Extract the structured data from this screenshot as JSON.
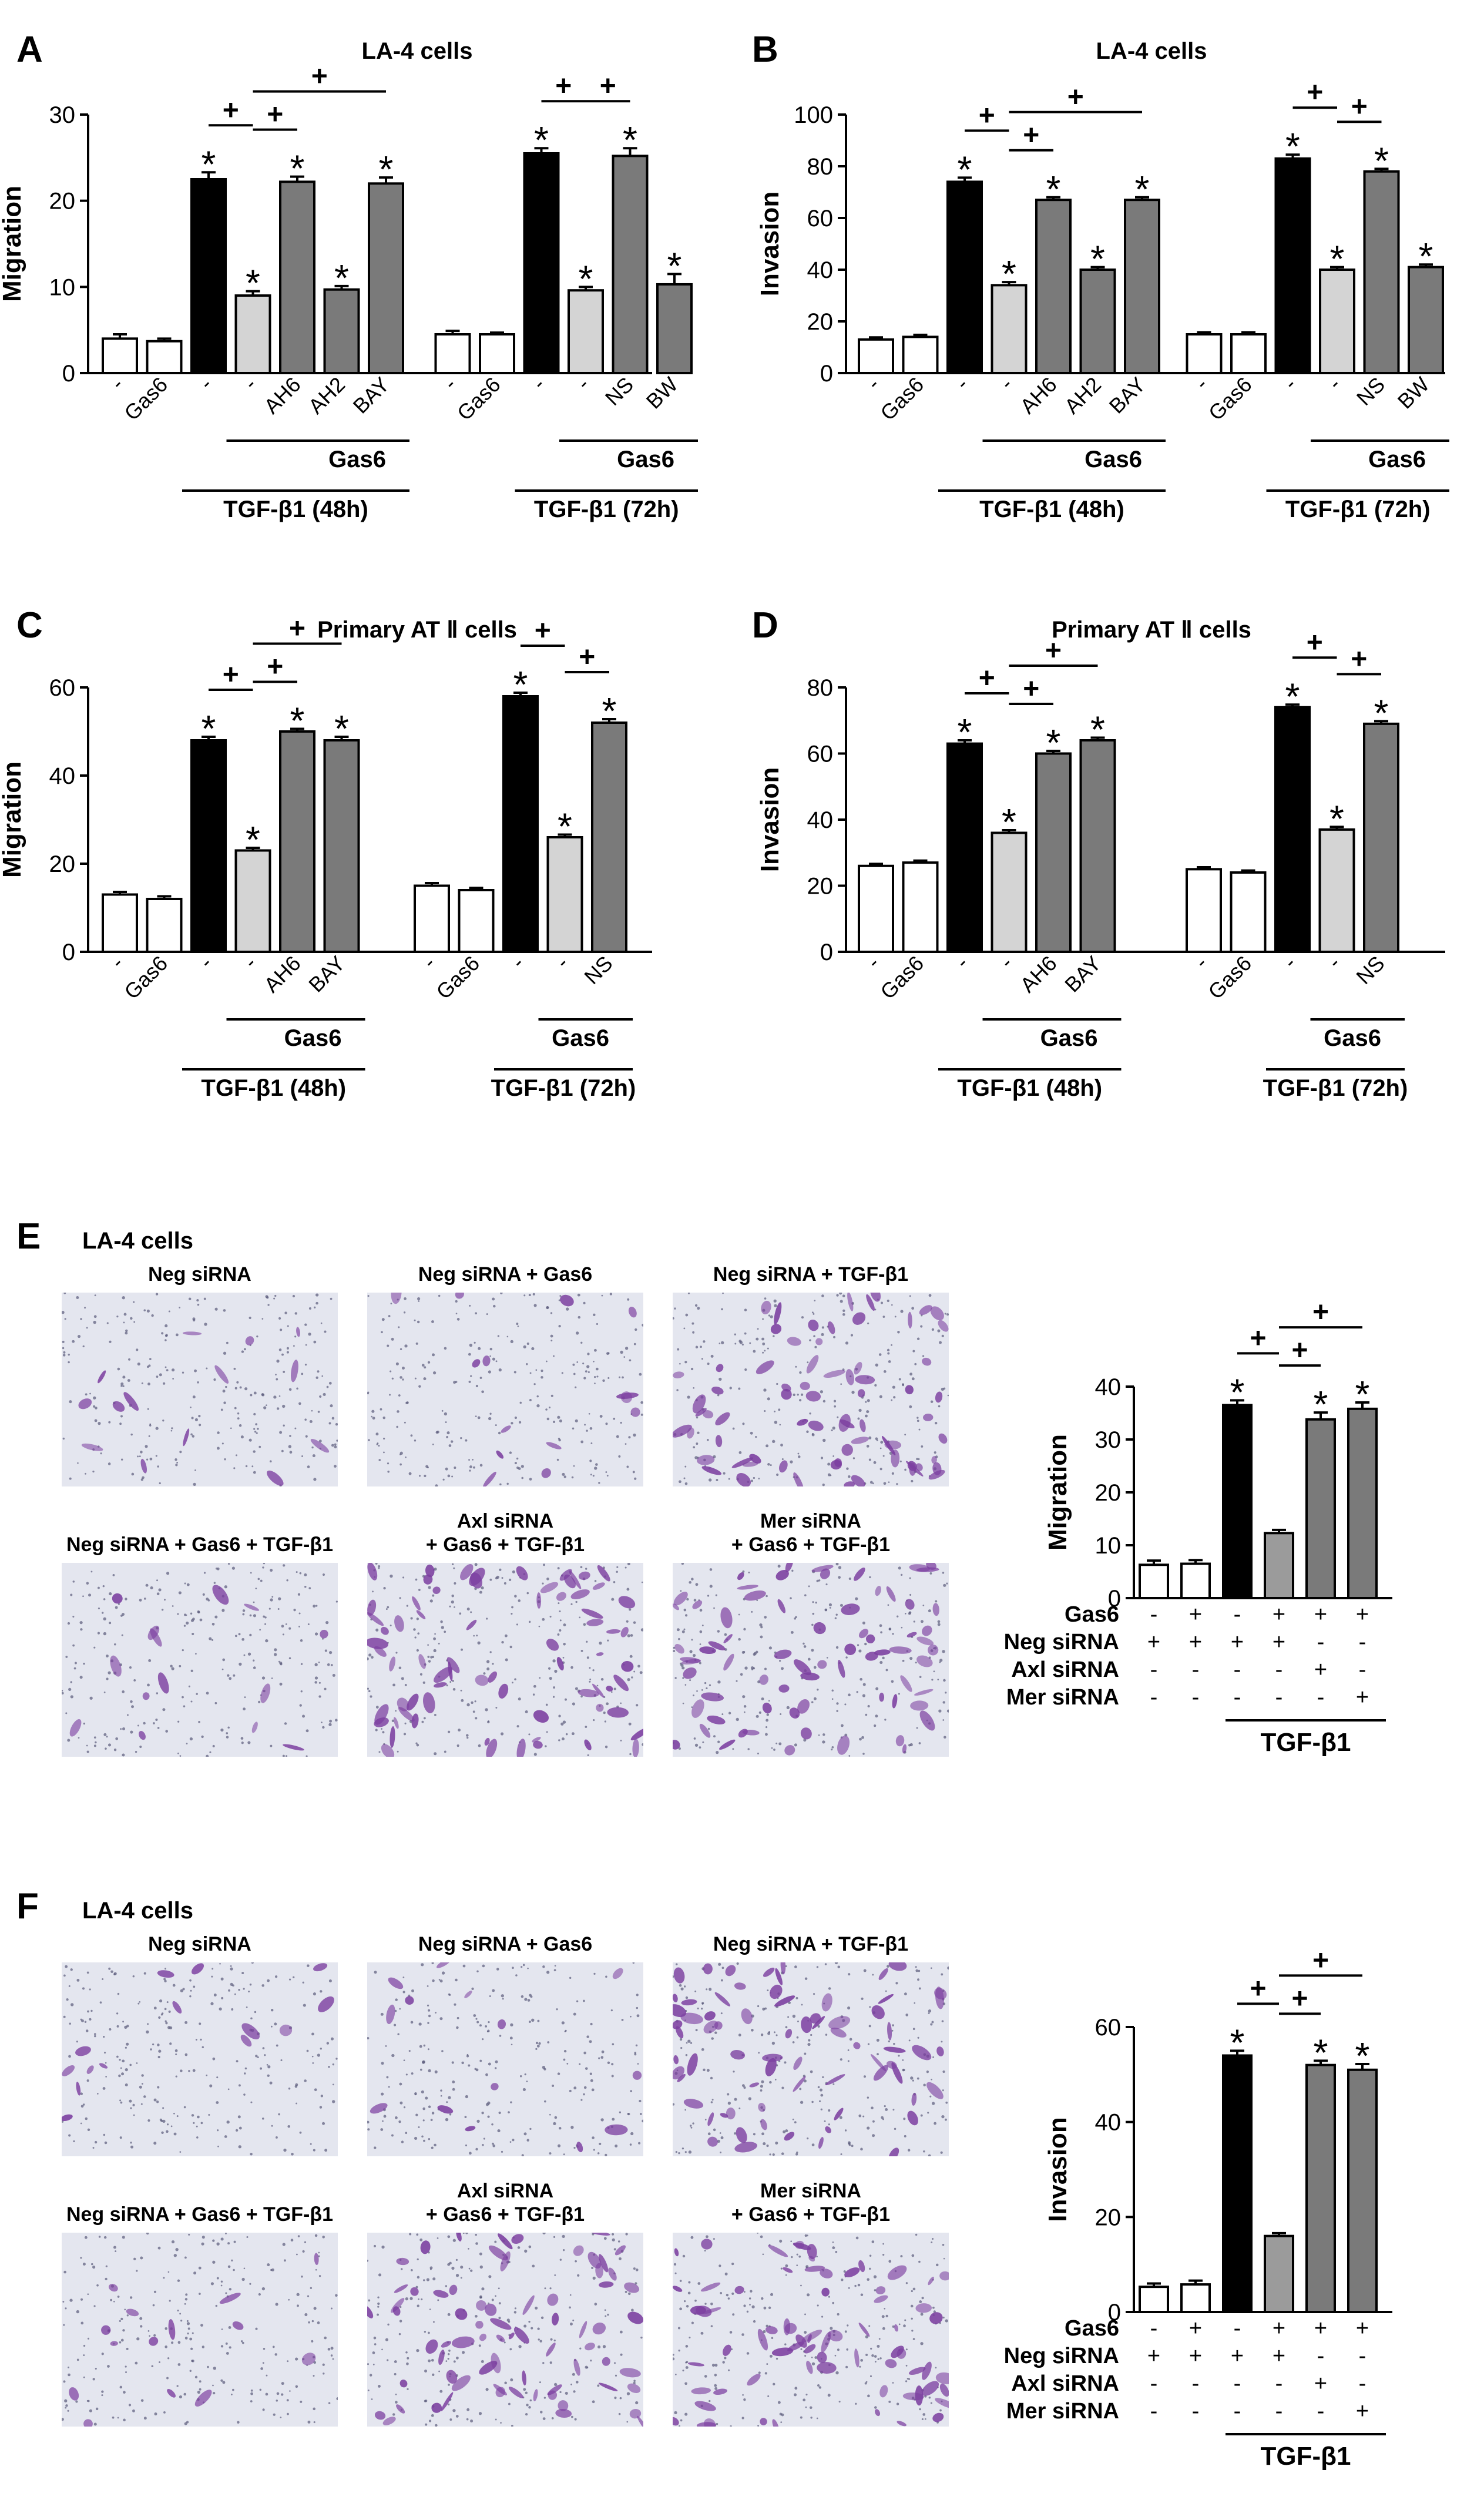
{
  "figure": {
    "panels": [
      {
        "letter": "A",
        "title": "LA-4 cells"
      },
      {
        "letter": "B",
        "title": "LA-4 cells"
      },
      {
        "letter": "C",
        "title": "Primary AT Ⅱ cells"
      },
      {
        "letter": "D",
        "title": "Primary AT Ⅱ cells"
      },
      {
        "letter": "E",
        "title": "LA-4 cells"
      },
      {
        "letter": "F",
        "title": "LA-4 cells"
      }
    ],
    "micrographs": {
      "E": [
        {
          "label_lines": [
            "Neg siRNA"
          ],
          "density": "low"
        },
        {
          "label_lines": [
            "Neg siRNA + Gas6"
          ],
          "density": "low"
        },
        {
          "label_lines": [
            "Neg siRNA + TGF-β1"
          ],
          "density": "high"
        },
        {
          "label_lines": [
            "Neg siRNA + Gas6 + TGF-β1"
          ],
          "density": "low"
        },
        {
          "label_lines": [
            "Axl siRNA",
            "+ Gas6 + TGF-β1"
          ],
          "density": "high"
        },
        {
          "label_lines": [
            "Mer siRNA",
            "+ Gas6 + TGF-β1"
          ],
          "density": "high"
        }
      ],
      "F": [
        {
          "label_lines": [
            "Neg siRNA"
          ],
          "density": "low"
        },
        {
          "label_lines": [
            "Neg siRNA + Gas6"
          ],
          "density": "low"
        },
        {
          "label_lines": [
            "Neg siRNA + TGF-β1"
          ],
          "density": "high"
        },
        {
          "label_lines": [
            "Neg siRNA + Gas6 + TGF-β1"
          ],
          "density": "low"
        },
        {
          "label_lines": [
            "Axl siRNA",
            "+ Gas6 + TGF-β1"
          ],
          "density": "high"
        },
        {
          "label_lines": [
            "Mer siRNA",
            "+ Gas6 + TGF-β1"
          ],
          "density": "high"
        }
      ]
    },
    "colors": {
      "black": "#000000",
      "white": "#ffffff",
      "light_gray": "#d4d4d4",
      "dark_gray": "#7a7a7a",
      "mid_gray": "#9b9b9b",
      "micro_bg": "#e4e6ef",
      "cell_purple": "#7c3fa0",
      "pore_dot": "#5a5a7a"
    }
  },
  "chart_data": [
    {
      "panel": "A",
      "type": "bar",
      "title": "LA-4 cells",
      "xlabel": "",
      "ylabel": "Migration",
      "ylim": [
        0,
        30
      ],
      "yticks": [
        0,
        10,
        20,
        30
      ],
      "grid": false,
      "categories": [
        "-",
        "Gas6",
        "-",
        "-",
        "AH6",
        "AH2",
        "BAY",
        "-",
        "Gas6",
        "-",
        "-",
        "NS",
        "BW"
      ],
      "values": [
        4.0,
        3.7,
        22.5,
        9.0,
        22.2,
        9.7,
        22.0,
        4.5,
        4.5,
        25.5,
        9.6,
        25.2,
        10.3
      ],
      "errors": [
        0.5,
        0.3,
        0.8,
        0.5,
        0.6,
        0.4,
        0.7,
        0.4,
        0.2,
        0.6,
        0.4,
        0.9,
        1.2
      ],
      "fills": [
        "white",
        "white",
        "black",
        "light",
        "dark",
        "dark",
        "dark",
        "white",
        "white",
        "black",
        "light",
        "dark",
        "dark"
      ],
      "significant": [
        false,
        false,
        true,
        true,
        true,
        true,
        true,
        false,
        false,
        true,
        true,
        true,
        true
      ],
      "significance_mark": "*",
      "comparisons": [
        {
          "from": 2,
          "to": 3,
          "label": "+"
        },
        {
          "from": 3,
          "to": 4,
          "label": "+"
        },
        {
          "from": 3,
          "to": 6,
          "label": "+"
        },
        {
          "from": 9,
          "to": 10,
          "label": "+"
        },
        {
          "from": 10,
          "to": 11,
          "label": "+"
        }
      ],
      "groupings": [
        {
          "label": "Gas6",
          "from": 3,
          "to": 6
        },
        {
          "label": "TGF-β1 (48h)",
          "from": 2,
          "to": 6
        },
        {
          "label": "Gas6",
          "from": 10,
          "to": 12
        },
        {
          "label": "TGF-β1 (72h)",
          "from": 9,
          "to": 12
        }
      ]
    },
    {
      "panel": "B",
      "type": "bar",
      "title": "LA-4 cells",
      "xlabel": "",
      "ylabel": "Invasion",
      "ylim": [
        0,
        100
      ],
      "yticks": [
        0,
        20,
        40,
        60,
        80,
        100
      ],
      "grid": false,
      "categories": [
        "-",
        "Gas6",
        "-",
        "-",
        "AH6",
        "AH2",
        "BAY",
        "-",
        "Gas6",
        "-",
        "-",
        "NS",
        "BW"
      ],
      "values": [
        13,
        14,
        74,
        34,
        67,
        40,
        67,
        15,
        15,
        83,
        40,
        78,
        41
      ],
      "errors": [
        0.8,
        0.8,
        1.6,
        1.2,
        1.0,
        1.0,
        1.0,
        0.8,
        0.8,
        1.5,
        1.0,
        1.0,
        1.0
      ],
      "fills": [
        "white",
        "white",
        "black",
        "light",
        "dark",
        "dark",
        "dark",
        "white",
        "white",
        "black",
        "light",
        "dark",
        "dark"
      ],
      "significant": [
        false,
        false,
        true,
        true,
        true,
        true,
        true,
        false,
        false,
        true,
        true,
        true,
        true
      ],
      "significance_mark": "*",
      "comparisons": [
        {
          "from": 2,
          "to": 3,
          "label": "+"
        },
        {
          "from": 3,
          "to": 4,
          "label": "+"
        },
        {
          "from": 3,
          "to": 6,
          "label": "+"
        },
        {
          "from": 9,
          "to": 10,
          "label": "+"
        },
        {
          "from": 10,
          "to": 11,
          "label": "+"
        }
      ],
      "groupings": [
        {
          "label": "Gas6",
          "from": 3,
          "to": 6
        },
        {
          "label": "TGF-β1 (48h)",
          "from": 2,
          "to": 6
        },
        {
          "label": "Gas6",
          "from": 10,
          "to": 12
        },
        {
          "label": "TGF-β1 (72h)",
          "from": 9,
          "to": 12
        }
      ]
    },
    {
      "panel": "C",
      "type": "bar",
      "title": "Primary AT Ⅱ cells",
      "xlabel": "",
      "ylabel": "Migration",
      "ylim": [
        0,
        60
      ],
      "yticks": [
        0,
        20,
        40,
        60
      ],
      "grid": false,
      "categories": [
        "-",
        "Gas6",
        "-",
        "-",
        "AH6",
        "BAY",
        "-",
        "Gas6",
        "-",
        "-",
        "NS"
      ],
      "values": [
        13,
        12,
        48,
        23,
        50,
        48,
        15,
        14,
        58,
        26,
        52
      ],
      "errors": [
        0.6,
        0.6,
        0.8,
        0.6,
        0.6,
        0.8,
        0.6,
        0.5,
        0.8,
        0.6,
        0.8
      ],
      "fills": [
        "white",
        "white",
        "black",
        "light",
        "dark",
        "dark",
        "white",
        "white",
        "black",
        "light",
        "dark"
      ],
      "significant": [
        false,
        false,
        true,
        true,
        true,
        true,
        false,
        false,
        true,
        true,
        true
      ],
      "significance_mark": "*",
      "comparisons": [
        {
          "from": 2,
          "to": 3,
          "label": "+"
        },
        {
          "from": 3,
          "to": 4,
          "label": "+"
        },
        {
          "from": 3,
          "to": 5,
          "label": "+"
        },
        {
          "from": 8,
          "to": 9,
          "label": "+"
        },
        {
          "from": 9,
          "to": 10,
          "label": "+"
        }
      ],
      "groupings": [
        {
          "label": "Gas6",
          "from": 3,
          "to": 5
        },
        {
          "label": "TGF-β1 (48h)",
          "from": 2,
          "to": 5
        },
        {
          "label": "Gas6",
          "from": 9,
          "to": 10
        },
        {
          "label": "TGF-β1 (72h)",
          "from": 8,
          "to": 10
        }
      ]
    },
    {
      "panel": "D",
      "type": "bar",
      "title": "Primary AT Ⅱ cells",
      "xlabel": "",
      "ylabel": "Invasion",
      "ylim": [
        0,
        80
      ],
      "yticks": [
        0,
        20,
        40,
        60,
        80
      ],
      "grid": false,
      "categories": [
        "-",
        "Gas6",
        "-",
        "-",
        "AH6",
        "BAY",
        "-",
        "Gas6",
        "-",
        "-",
        "NS"
      ],
      "values": [
        26,
        27,
        63,
        36,
        60,
        64,
        25,
        24,
        74,
        37,
        69
      ],
      "errors": [
        0.6,
        0.6,
        1.0,
        0.8,
        0.8,
        0.8,
        0.6,
        0.6,
        0.8,
        0.8,
        0.8
      ],
      "fills": [
        "white",
        "white",
        "black",
        "light",
        "dark",
        "dark",
        "white",
        "white",
        "black",
        "light",
        "dark"
      ],
      "significant": [
        false,
        false,
        true,
        true,
        true,
        true,
        false,
        false,
        true,
        true,
        true
      ],
      "significance_mark": "*",
      "comparisons": [
        {
          "from": 2,
          "to": 3,
          "label": "+"
        },
        {
          "from": 3,
          "to": 4,
          "label": "+"
        },
        {
          "from": 3,
          "to": 5,
          "label": "+"
        },
        {
          "from": 8,
          "to": 9,
          "label": "+"
        },
        {
          "from": 9,
          "to": 10,
          "label": "+"
        }
      ],
      "groupings": [
        {
          "label": "Gas6",
          "from": 3,
          "to": 5
        },
        {
          "label": "TGF-β1 (48h)",
          "from": 2,
          "to": 5
        },
        {
          "label": "Gas6",
          "from": 9,
          "to": 10
        },
        {
          "label": "TGF-β1 (72h)",
          "from": 8,
          "to": 10
        }
      ]
    },
    {
      "panel": "E",
      "type": "bar",
      "title": "",
      "xlabel": "",
      "ylabel": "Migration",
      "ylim": [
        0,
        40
      ],
      "yticks": [
        0,
        10,
        20,
        30,
        40
      ],
      "grid": false,
      "categories": [
        "1",
        "2",
        "3",
        "4",
        "5",
        "6"
      ],
      "values": [
        6.3,
        6.5,
        36.5,
        12.3,
        33.8,
        35.8
      ],
      "errors": [
        0.8,
        0.7,
        0.9,
        0.6,
        1.3,
        1.2
      ],
      "fills": [
        "white",
        "white",
        "black",
        "mid",
        "dark",
        "dark"
      ],
      "significant": [
        false,
        false,
        true,
        false,
        true,
        true
      ],
      "significance_mark": "*",
      "comparisons": [
        {
          "from": 2,
          "to": 3,
          "label": "+"
        },
        {
          "from": 3,
          "to": 4,
          "label": "+"
        },
        {
          "from": 3,
          "to": 5,
          "label": "+"
        }
      ],
      "treatment_rows": [
        {
          "label": "Gas6",
          "signs": [
            "-",
            "+",
            "-",
            "+",
            "+",
            "+"
          ]
        },
        {
          "label": "Neg siRNA",
          "signs": [
            "+",
            "+",
            "+",
            "+",
            "-",
            "-"
          ]
        },
        {
          "label": "Axl siRNA",
          "signs": [
            "-",
            "-",
            "-",
            "-",
            "+",
            "-"
          ]
        },
        {
          "label": "Mer siRNA",
          "signs": [
            "-",
            "-",
            "-",
            "-",
            "-",
            "+"
          ]
        }
      ],
      "groupings": [
        {
          "label": "TGF-β1",
          "from": 2,
          "to": 5
        }
      ]
    },
    {
      "panel": "F",
      "type": "bar",
      "title": "",
      "xlabel": "",
      "ylabel": "Invasion",
      "ylim": [
        0,
        60
      ],
      "yticks": [
        0,
        20,
        40,
        60
      ],
      "grid": false,
      "categories": [
        "1",
        "2",
        "3",
        "4",
        "5",
        "6"
      ],
      "values": [
        5.3,
        5.8,
        54,
        16,
        52,
        51
      ],
      "errors": [
        0.7,
        0.8,
        1.0,
        0.6,
        0.9,
        1.2
      ],
      "fills": [
        "white",
        "white",
        "black",
        "mid",
        "dark",
        "dark"
      ],
      "significant": [
        false,
        false,
        true,
        false,
        true,
        true
      ],
      "significance_mark": "*",
      "comparisons": [
        {
          "from": 2,
          "to": 3,
          "label": "+"
        },
        {
          "from": 3,
          "to": 4,
          "label": "+"
        },
        {
          "from": 3,
          "to": 5,
          "label": "+"
        }
      ],
      "treatment_rows": [
        {
          "label": "Gas6",
          "signs": [
            "-",
            "+",
            "-",
            "+",
            "+",
            "+"
          ]
        },
        {
          "label": "Neg siRNA",
          "signs": [
            "+",
            "+",
            "+",
            "+",
            "-",
            "-"
          ]
        },
        {
          "label": "Axl siRNA",
          "signs": [
            "-",
            "-",
            "-",
            "-",
            "+",
            "-"
          ]
        },
        {
          "label": "Mer siRNA",
          "signs": [
            "-",
            "-",
            "-",
            "-",
            "-",
            "+"
          ]
        }
      ],
      "groupings": [
        {
          "label": "TGF-β1",
          "from": 2,
          "to": 5
        }
      ]
    }
  ]
}
